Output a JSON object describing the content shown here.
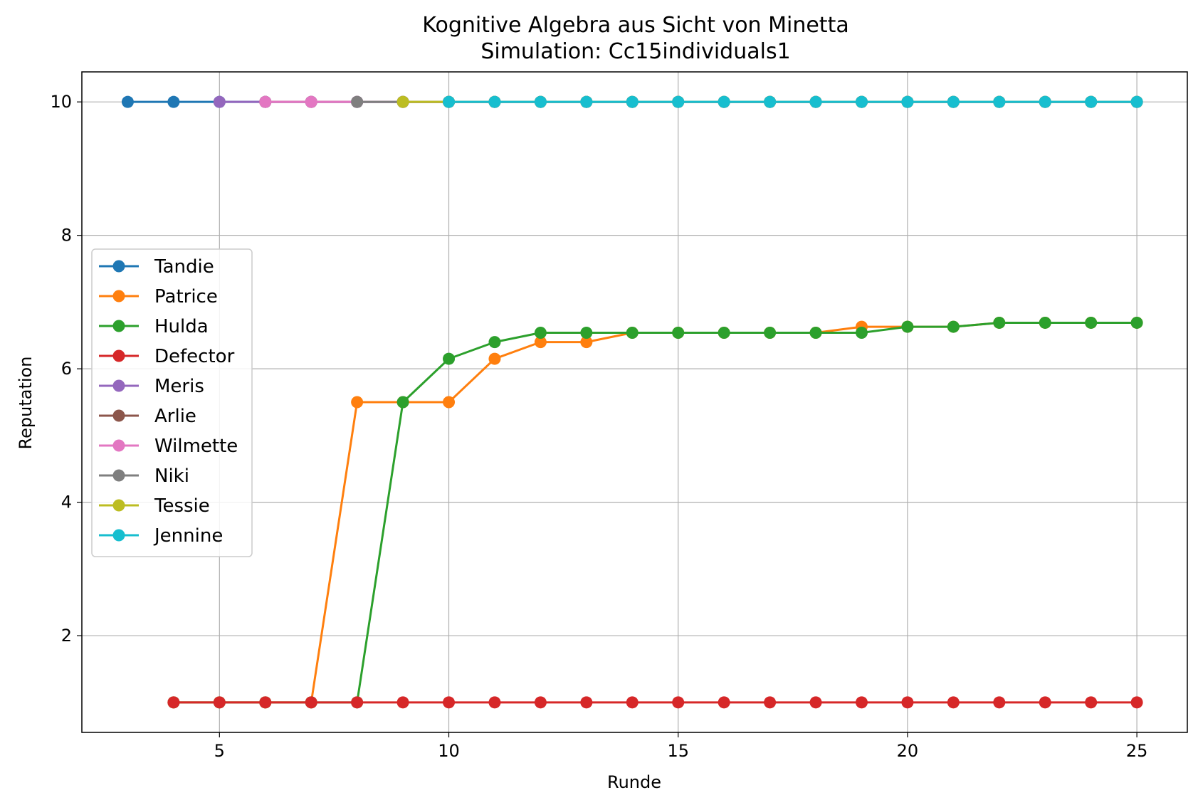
{
  "chart_data": {
    "type": "line",
    "title": "Kognitive Algebra aus Sicht von Minetta",
    "subtitle": "Simulation: Cc15individuals1",
    "xlabel": "Runde",
    "ylabel": "Reputation",
    "xlim": [
      2,
      26.1
    ],
    "ylim": [
      0.55,
      10.45
    ],
    "xticks": [
      5,
      10,
      15,
      20,
      25
    ],
    "yticks": [
      2,
      4,
      6,
      8,
      10
    ],
    "grid": true,
    "legend_position": "center-left",
    "series": [
      {
        "name": "Tandie",
        "color": "#1f77b4",
        "x": [
          3,
          4,
          5,
          6,
          7,
          8,
          9,
          10,
          11,
          12,
          13,
          14,
          15,
          16,
          17,
          18,
          19,
          20,
          21,
          22,
          23,
          24,
          25
        ],
        "y": [
          10,
          10,
          10,
          10,
          10,
          10,
          10,
          10,
          10,
          10,
          10,
          10,
          10,
          10,
          10,
          10,
          10,
          10,
          10,
          10,
          10,
          10,
          10
        ]
      },
      {
        "name": "Patrice",
        "color": "#ff7f0e",
        "x": [
          4,
          5,
          6,
          7,
          8,
          9,
          10,
          11,
          12,
          13,
          14,
          15,
          16,
          17,
          18,
          19,
          20,
          21,
          22,
          23,
          24,
          25
        ],
        "y": [
          1,
          1,
          1,
          1,
          5.5,
          5.5,
          5.5,
          6.15,
          6.4,
          6.4,
          6.54,
          6.54,
          6.54,
          6.54,
          6.54,
          6.63,
          6.63,
          6.63,
          6.69,
          6.69,
          6.69,
          6.69
        ]
      },
      {
        "name": "Hulda",
        "color": "#2ca02c",
        "x": [
          4,
          5,
          6,
          7,
          8,
          9,
          10,
          11,
          12,
          13,
          14,
          15,
          16,
          17,
          18,
          19,
          20,
          21,
          22,
          23,
          24,
          25
        ],
        "y": [
          1,
          1,
          1,
          1,
          1,
          5.5,
          6.15,
          6.4,
          6.54,
          6.54,
          6.54,
          6.54,
          6.54,
          6.54,
          6.54,
          6.54,
          6.63,
          6.63,
          6.69,
          6.69,
          6.69,
          6.69
        ]
      },
      {
        "name": "Defector",
        "color": "#d62728",
        "x": [
          4,
          5,
          6,
          7,
          8,
          9,
          10,
          11,
          12,
          13,
          14,
          15,
          16,
          17,
          18,
          19,
          20,
          21,
          22,
          23,
          24,
          25
        ],
        "y": [
          1,
          1,
          1,
          1,
          1,
          1,
          1,
          1,
          1,
          1,
          1,
          1,
          1,
          1,
          1,
          1,
          1,
          1,
          1,
          1,
          1,
          1
        ]
      },
      {
        "name": "Meris",
        "color": "#9467bd",
        "x": [
          5,
          6,
          7,
          8,
          9,
          10,
          11,
          12,
          13,
          14,
          15,
          16,
          17,
          18,
          19,
          20,
          21,
          22,
          23,
          24,
          25
        ],
        "y": [
          10,
          10,
          10,
          10,
          10,
          10,
          10,
          10,
          10,
          10,
          10,
          10,
          10,
          10,
          10,
          10,
          10,
          10,
          10,
          10,
          10
        ]
      },
      {
        "name": "Arlie",
        "color": "#8c564b",
        "x": [
          6,
          7,
          8,
          9,
          10,
          11,
          12,
          13,
          14,
          15,
          16,
          17,
          18,
          19,
          20,
          21,
          22,
          23,
          24,
          25
        ],
        "y": [
          10,
          10,
          10,
          10,
          10,
          10,
          10,
          10,
          10,
          10,
          10,
          10,
          10,
          10,
          10,
          10,
          10,
          10,
          10,
          10
        ]
      },
      {
        "name": "Wilmette",
        "color": "#e377c2",
        "x": [
          6,
          7,
          8,
          9,
          10,
          11,
          12,
          13,
          14,
          15,
          16,
          17,
          18,
          19,
          20,
          21,
          22,
          23,
          24,
          25
        ],
        "y": [
          10,
          10,
          10,
          10,
          10,
          10,
          10,
          10,
          10,
          10,
          10,
          10,
          10,
          10,
          10,
          10,
          10,
          10,
          10,
          10
        ]
      },
      {
        "name": "Niki",
        "color": "#7f7f7f",
        "x": [
          8,
          9,
          10,
          11,
          12,
          13,
          14,
          15,
          16,
          17,
          18,
          19,
          20,
          21,
          22,
          23,
          24,
          25
        ],
        "y": [
          10,
          10,
          10,
          10,
          10,
          10,
          10,
          10,
          10,
          10,
          10,
          10,
          10,
          10,
          10,
          10,
          10,
          10
        ]
      },
      {
        "name": "Tessie",
        "color": "#bcbd22",
        "x": [
          9,
          10,
          11,
          12,
          13,
          14,
          15,
          16,
          17,
          18,
          19,
          20,
          21,
          22,
          23,
          24,
          25
        ],
        "y": [
          10,
          10,
          10,
          10,
          10,
          10,
          10,
          10,
          10,
          10,
          10,
          10,
          10,
          10,
          10,
          10,
          10
        ]
      },
      {
        "name": "Jennine",
        "color": "#17becf",
        "x": [
          10,
          11,
          12,
          13,
          14,
          15,
          16,
          17,
          18,
          19,
          20,
          21,
          22,
          23,
          24,
          25
        ],
        "y": [
          10,
          10,
          10,
          10,
          10,
          10,
          10,
          10,
          10,
          10,
          10,
          10,
          10,
          10,
          10,
          10
        ]
      }
    ]
  }
}
